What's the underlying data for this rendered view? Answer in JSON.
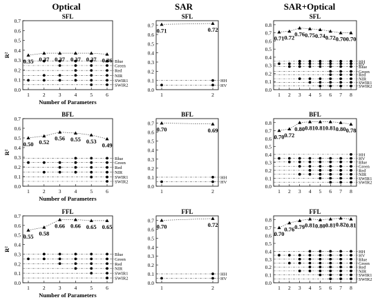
{
  "columns": [
    {
      "title": "Optical"
    },
    {
      "title": "SAR"
    },
    {
      "title": "SAR+Optical"
    }
  ],
  "chart_data": [
    {
      "type": "scatter",
      "id": "opt-sfl",
      "title": "SFL",
      "xlabel": "Number of Parameters",
      "ylabel": "R²",
      "x": [
        1,
        2,
        3,
        4,
        5,
        6
      ],
      "ylim": [
        0,
        0.7
      ],
      "yticks": [
        0,
        0.1,
        0.2,
        0.3,
        0.4,
        0.5,
        0.6,
        0.7
      ],
      "r2": [
        0.35,
        0.37,
        0.37,
        0.37,
        0.37,
        0.36
      ],
      "r2_labels": [
        "0.35",
        "0.37",
        "0.37",
        "0.37",
        "0.37",
        "0.36"
      ],
      "params": [
        {
          "name": "Blue",
          "y": 0.29,
          "selected": [
            2,
            3,
            4,
            5,
            6
          ]
        },
        {
          "name": "Green",
          "y": 0.245,
          "selected": [
            3,
            4,
            5,
            6
          ]
        },
        {
          "name": "Red",
          "y": 0.195,
          "selected": [
            4,
            5,
            6
          ]
        },
        {
          "name": "NIR",
          "y": 0.145,
          "selected": [
            2,
            3,
            4,
            5,
            6
          ]
        },
        {
          "name": "SWIR1",
          "y": 0.095,
          "selected": [
            1,
            2,
            3,
            4,
            5,
            6
          ]
        },
        {
          "name": "SWIR2",
          "y": 0.05,
          "selected": [
            5,
            6
          ]
        }
      ]
    },
    {
      "type": "scatter",
      "id": "sar-sfl",
      "title": "SFL",
      "xlabel": "",
      "ylabel": "",
      "x": [
        1,
        2
      ],
      "ylim": [
        0,
        0.75
      ],
      "yticks": [
        0,
        0.1,
        0.2,
        0.3,
        0.4,
        0.5,
        0.6,
        0.7
      ],
      "r2": [
        0.71,
        0.72
      ],
      "r2_labels": [
        "0.71",
        "0.72"
      ],
      "params": [
        {
          "name": "HH",
          "y": 0.1,
          "selected": [
            2
          ]
        },
        {
          "name": "HV",
          "y": 0.05,
          "selected": [
            1,
            2
          ]
        }
      ]
    },
    {
      "type": "scatter",
      "id": "so-sfl",
      "title": "SFL",
      "xlabel": "",
      "ylabel": "",
      "x": [
        1,
        2,
        3,
        4,
        5,
        6,
        7,
        8
      ],
      "ylim": [
        0,
        0.85
      ],
      "yticks": [
        0,
        0.1,
        0.2,
        0.3,
        0.4,
        0.5,
        0.6,
        0.7,
        0.8
      ],
      "r2": [
        0.71,
        0.72,
        0.76,
        0.75,
        0.74,
        0.72,
        0.7,
        0.7
      ],
      "r2_labels": [
        "0.71",
        "0.72",
        "0.76",
        "0.75",
        "0.74",
        "0.72",
        "0.70",
        "0.70"
      ],
      "params": [
        {
          "name": "HH",
          "y": 0.35,
          "selected": [
            3,
            4,
            5,
            6,
            7,
            8
          ]
        },
        {
          "name": "HV",
          "y": 0.32,
          "selected": [
            1,
            2,
            3,
            4,
            5,
            6,
            7,
            8
          ]
        },
        {
          "name": "Blue",
          "y": 0.285,
          "selected": [
            2,
            3,
            4,
            5,
            6,
            7,
            8
          ]
        },
        {
          "name": "Green",
          "y": 0.225,
          "selected": [
            6,
            7,
            8
          ]
        },
        {
          "name": "Red",
          "y": 0.185,
          "selected": [
            6,
            7,
            8
          ]
        },
        {
          "name": "NIR",
          "y": 0.135,
          "selected": [
            3,
            4,
            5,
            6,
            7,
            8
          ]
        },
        {
          "name": "SWIR1",
          "y": 0.09,
          "selected": [
            4,
            5,
            6,
            7,
            8
          ]
        },
        {
          "name": "SWIR2",
          "y": 0.045,
          "selected": [
            5,
            6,
            7,
            8
          ]
        }
      ]
    },
    {
      "type": "scatter",
      "id": "opt-bfl",
      "title": "BFL",
      "xlabel": "Number of Parameters",
      "ylabel": "R²",
      "x": [
        1,
        2,
        3,
        4,
        5,
        6
      ],
      "ylim": [
        0,
        0.7
      ],
      "yticks": [
        0,
        0.1,
        0.2,
        0.3,
        0.4,
        0.5,
        0.6,
        0.7
      ],
      "r2": [
        0.5,
        0.52,
        0.56,
        0.55,
        0.53,
        0.49
      ],
      "r2_labels": [
        "0.50",
        "0.52",
        "0.56",
        "0.55",
        "0.53",
        "0.49"
      ],
      "params": [
        {
          "name": "Blue",
          "y": 0.29,
          "selected": [
            4,
            5,
            6
          ]
        },
        {
          "name": "Green",
          "y": 0.245,
          "selected": [
            1,
            2,
            3,
            4,
            5,
            6
          ]
        },
        {
          "name": "Red",
          "y": 0.195,
          "selected": [
            3,
            4,
            5,
            6
          ]
        },
        {
          "name": "NIR",
          "y": 0.145,
          "selected": [
            2,
            3,
            4,
            5,
            6
          ]
        },
        {
          "name": "SWIR1",
          "y": 0.095,
          "selected": [
            5,
            6
          ]
        },
        {
          "name": "SWIR2",
          "y": 0.05,
          "selected": [
            6
          ]
        }
      ]
    },
    {
      "type": "scatter",
      "id": "sar-bfl",
      "title": "BFL",
      "xlabel": "",
      "ylabel": "",
      "x": [
        1,
        2
      ],
      "ylim": [
        0,
        0.75
      ],
      "yticks": [
        0,
        0.1,
        0.2,
        0.3,
        0.4,
        0.5,
        0.6,
        0.7
      ],
      "r2": [
        0.7,
        0.69
      ],
      "r2_labels": [
        "0.70",
        "0.69"
      ],
      "params": [
        {
          "name": "HH",
          "y": 0.1,
          "selected": [
            2
          ]
        },
        {
          "name": "HV",
          "y": 0.05,
          "selected": [
            1,
            2
          ]
        }
      ]
    },
    {
      "type": "scatter",
      "id": "so-bfl",
      "title": "BFL",
      "xlabel": "",
      "ylabel": "",
      "x": [
        1,
        2,
        3,
        4,
        5,
        6,
        7,
        8
      ],
      "ylim": [
        0,
        0.85
      ],
      "yticks": [
        0,
        0.1,
        0.2,
        0.3,
        0.4,
        0.5,
        0.6,
        0.7,
        0.8
      ],
      "r2": [
        0.7,
        0.72,
        0.8,
        0.81,
        0.81,
        0.81,
        0.8,
        0.78
      ],
      "r2_labels": [
        "0.70",
        "0.72",
        "0.80",
        "0.81",
        "0.81",
        "0.81",
        "0.80",
        "0.78"
      ],
      "params": [
        {
          "name": "HH",
          "y": 0.4,
          "selected": [
            8
          ]
        },
        {
          "name": "HV",
          "y": 0.35,
          "selected": [
            1,
            2,
            3,
            4,
            5,
            6,
            7,
            8
          ]
        },
        {
          "name": "Blue",
          "y": 0.305,
          "selected": [
            2,
            3,
            4,
            5,
            6,
            7,
            8
          ]
        },
        {
          "name": "Green",
          "y": 0.25,
          "selected": [
            3,
            4,
            5,
            6,
            7,
            8
          ]
        },
        {
          "name": "Red",
          "y": 0.2,
          "selected": [
            4,
            5,
            6,
            7,
            8
          ]
        },
        {
          "name": "NIR",
          "y": 0.15,
          "selected": [
            3,
            4,
            5,
            6,
            7,
            8
          ]
        },
        {
          "name": "SWIR1",
          "y": 0.1,
          "selected": [
            5,
            6,
            7,
            8
          ]
        },
        {
          "name": "SWIR2",
          "y": 0.05,
          "selected": [
            6,
            7,
            8
          ]
        }
      ]
    },
    {
      "type": "scatter",
      "id": "opt-ffl",
      "title": "FFL",
      "xlabel": "Number of Parameters",
      "ylabel": "R²",
      "x": [
        1,
        2,
        3,
        4,
        5,
        6
      ],
      "ylim": [
        0,
        0.7
      ],
      "yticks": [
        0,
        0.1,
        0.2,
        0.3,
        0.4,
        0.5,
        0.6,
        0.7
      ],
      "r2": [
        0.55,
        0.58,
        0.66,
        0.66,
        0.65,
        0.65
      ],
      "r2_labels": [
        "0.55",
        "0.58",
        "0.66",
        "0.66",
        "0.65",
        "0.65"
      ],
      "params": [
        {
          "name": "Blue",
          "y": 0.3,
          "selected": [
            2,
            3,
            4,
            5,
            6
          ]
        },
        {
          "name": "Green",
          "y": 0.25,
          "selected": [
            1,
            2,
            3,
            4,
            5,
            6
          ]
        },
        {
          "name": "Red",
          "y": 0.2,
          "selected": [
            3,
            4,
            5,
            6
          ]
        },
        {
          "name": "NIR",
          "y": 0.15,
          "selected": [
            4,
            5,
            6
          ]
        },
        {
          "name": "SWIR1",
          "y": 0.1,
          "selected": [
            5,
            6
          ]
        },
        {
          "name": "SWIR2",
          "y": 0.05,
          "selected": [
            6
          ]
        }
      ]
    },
    {
      "type": "scatter",
      "id": "sar-ffl",
      "title": "FFL",
      "xlabel": "",
      "ylabel": "",
      "x": [
        1,
        2
      ],
      "ylim": [
        0,
        0.75
      ],
      "yticks": [
        0,
        0.1,
        0.2,
        0.3,
        0.4,
        0.5,
        0.6,
        0.7
      ],
      "r2": [
        0.7,
        0.72
      ],
      "r2_labels": [
        "0.70",
        "0.72"
      ],
      "params": [
        {
          "name": "HH",
          "y": 0.1,
          "selected": [
            2
          ]
        },
        {
          "name": "HV",
          "y": 0.05,
          "selected": [
            1,
            2
          ]
        }
      ]
    },
    {
      "type": "scatter",
      "id": "so-ffl",
      "title": "FFL",
      "xlabel": "",
      "ylabel": "",
      "x": [
        1,
        2,
        3,
        4,
        5,
        6,
        7,
        8
      ],
      "ylim": [
        0,
        0.85
      ],
      "yticks": [
        0,
        0.1,
        0.2,
        0.3,
        0.4,
        0.5,
        0.6,
        0.7,
        0.8
      ],
      "r2": [
        0.7,
        0.76,
        0.79,
        0.81,
        0.8,
        0.81,
        0.82,
        0.81
      ],
      "r2_labels": [
        "0.70",
        "0.76",
        "0.79",
        "0.81",
        "0.80",
        "0.81",
        "0.82",
        "0.81"
      ],
      "params": [
        {
          "name": "HH",
          "y": 0.4,
          "selected": [
            4,
            5,
            6,
            7,
            8
          ]
        },
        {
          "name": "HV",
          "y": 0.35,
          "selected": [
            1,
            2,
            3,
            4,
            5,
            6,
            7,
            8
          ]
        },
        {
          "name": "Blue",
          "y": 0.3,
          "selected": [
            3,
            4,
            5,
            6,
            7,
            8
          ]
        },
        {
          "name": "Green",
          "y": 0.25,
          "selected": [
            2,
            3,
            4,
            5,
            6,
            7,
            8
          ]
        },
        {
          "name": "Red",
          "y": 0.2,
          "selected": [
            4,
            5,
            6,
            7,
            8
          ]
        },
        {
          "name": "NIR",
          "y": 0.15,
          "selected": [
            3,
            4,
            5,
            6,
            7,
            8
          ]
        },
        {
          "name": "SWIR1",
          "y": 0.1,
          "selected": [
            5,
            6,
            7,
            8
          ]
        },
        {
          "name": "SWIR2",
          "y": 0.05,
          "selected": [
            6,
            7,
            8
          ]
        }
      ]
    }
  ]
}
